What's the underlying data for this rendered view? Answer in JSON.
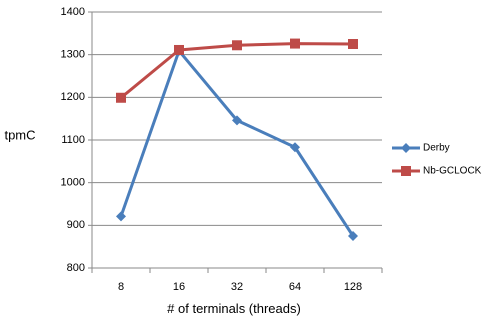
{
  "chart_data": {
    "type": "line",
    "title": "",
    "xlabel": "# of terminals (threads)",
    "ylabel": "tpmC",
    "categories": [
      "8",
      "16",
      "32",
      "64",
      "128"
    ],
    "ylim": [
      800,
      1400
    ],
    "yticks": [
      800,
      900,
      1000,
      1100,
      1200,
      1300,
      1400
    ],
    "grid": true,
    "legend": "right",
    "series": [
      {
        "name": "Derby",
        "color": "#4a7ebb",
        "marker": "diamond",
        "values": [
          921,
          1309,
          1146,
          1083,
          875
        ]
      },
      {
        "name": "Nb-GCLOCK",
        "color": "#be4b48",
        "marker": "square",
        "values": [
          1199,
          1311,
          1322,
          1326,
          1325
        ]
      }
    ]
  }
}
